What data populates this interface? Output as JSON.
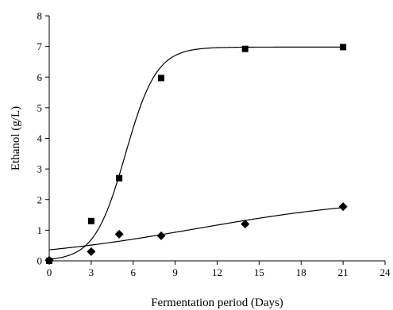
{
  "chart_data": {
    "type": "scatter",
    "xlabel": "Fermentation period (Days)",
    "ylabel": "Ethanol (g/L)",
    "xlim": [
      0,
      24
    ],
    "ylim": [
      0,
      8
    ],
    "xticks": [
      0,
      3,
      6,
      9,
      12,
      15,
      18,
      21,
      24
    ],
    "yticks": [
      0,
      1,
      2,
      3,
      4,
      5,
      6,
      7,
      8
    ],
    "grid": false,
    "legend": "none",
    "series": [
      {
        "marker": "square",
        "color": "#000000",
        "points": [
          {
            "x": 0,
            "y": 0.0
          },
          {
            "x": 3,
            "y": 1.3
          },
          {
            "x": 5,
            "y": 2.7
          },
          {
            "x": 8,
            "y": 5.97
          },
          {
            "x": 14,
            "y": 6.92
          },
          {
            "x": 21,
            "y": 6.98
          }
        ],
        "fit": {
          "kind": "sigmoid",
          "a": 6.98,
          "k": 0.9,
          "x0": 5.45,
          "b": 0
        }
      },
      {
        "marker": "diamond",
        "color": "#000000",
        "points": [
          {
            "x": 0,
            "y": 0.02
          },
          {
            "x": 3,
            "y": 0.3
          },
          {
            "x": 5,
            "y": 0.87
          },
          {
            "x": 8,
            "y": 0.82
          },
          {
            "x": 14,
            "y": 1.2
          },
          {
            "x": 21,
            "y": 1.77
          }
        ],
        "fit": {
          "kind": "sigmoid",
          "a": 2.1,
          "k": 0.15,
          "x0": 10.5,
          "b": 0
        }
      }
    ]
  }
}
